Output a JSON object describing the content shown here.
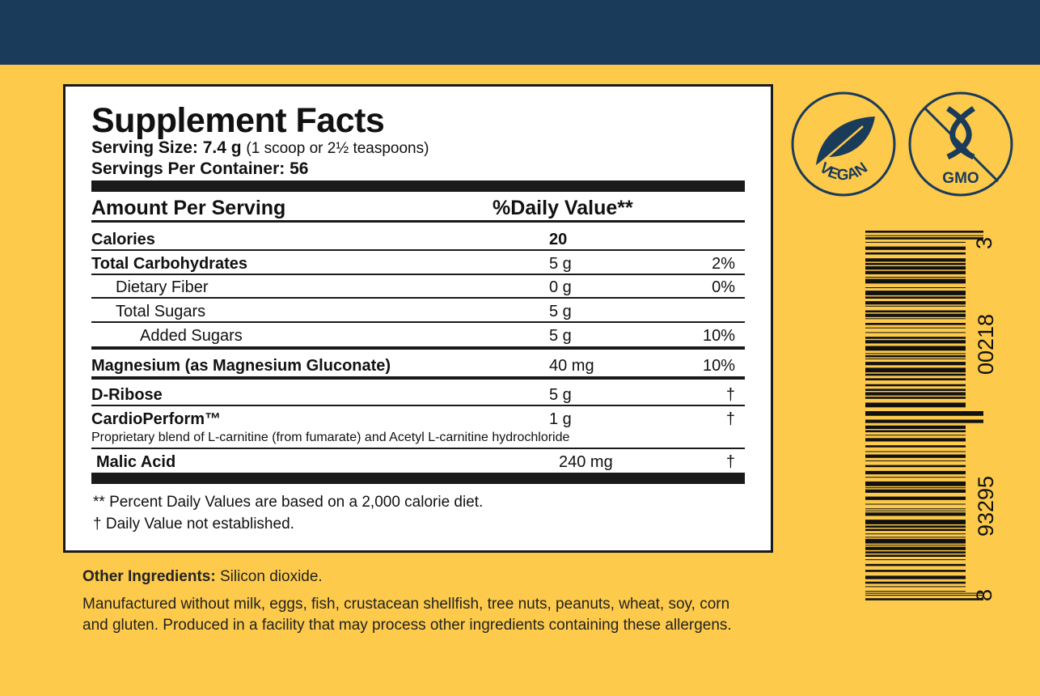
{
  "colors": {
    "background": "#fdca4b",
    "band": "#1a3b5a",
    "icon": "#1a3b5a"
  },
  "facts": {
    "title": "Supplement Facts",
    "serving_size_label": "Serving Size: 7.4 g",
    "serving_size_detail": "(1 scoop or 2½ teaspoons)",
    "servings_per_container": "Servings Per Container: 56",
    "header_amount": "Amount Per Serving",
    "header_dv": "%Daily Value**",
    "rows": [
      {
        "name": "Calories",
        "amount": "20",
        "dv": ""
      },
      {
        "name": "Total Carbohydrates",
        "amount": "5 g",
        "dv": "2%"
      },
      {
        "name": "Dietary Fiber",
        "amount": "0 g",
        "dv": "0%"
      },
      {
        "name": "Total Sugars",
        "amount": "5 g",
        "dv": ""
      },
      {
        "name": "Added Sugars",
        "amount": "5 g",
        "dv": "10%"
      },
      {
        "name": "Magnesium (as Magnesium Gluconate)",
        "amount": "40 mg",
        "dv": "10%"
      },
      {
        "name": "D-Ribose",
        "amount": "5 g",
        "dv": "†"
      },
      {
        "name": "CardioPerform™",
        "amount": "1 g",
        "dv": "†"
      },
      {
        "name": "Malic Acid",
        "amount": "240 mg",
        "dv": "†"
      }
    ],
    "blend_note": "Proprietary blend of L-carnitine (from fumarate) and Acetyl L-carnitine hydrochloride",
    "footnote1": "** Percent Daily Values are based on a 2,000 calorie diet.",
    "footnote2": "† Daily Value not established."
  },
  "other_ingredients_label": "Other Ingredients:",
  "other_ingredients": " Silicon dioxide.",
  "allergen_line1": "Manufactured without milk, eggs, fish, crustacean shellfish, tree nuts, peanuts, wheat, soy, corn",
  "allergen_line2": "and gluten. Produced in a facility that may process other ingredients containing these allergens.",
  "badges": {
    "vegan": "VEGAN",
    "gmo": "GMO",
    "vegan_icon": "leaf-icon",
    "gmo_icon": "dna-crossed-icon"
  },
  "barcode": {
    "digits": [
      "8",
      "93295",
      "00218",
      "3"
    ]
  }
}
